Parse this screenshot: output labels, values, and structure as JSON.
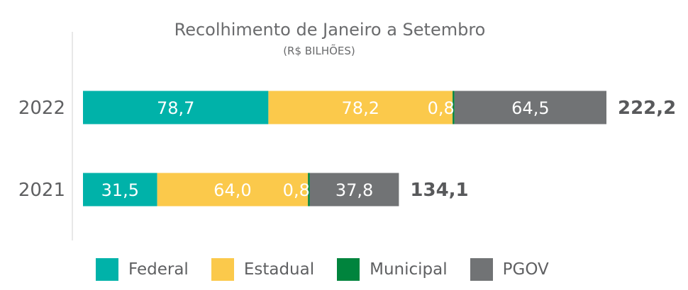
{
  "chart_data": {
    "type": "bar",
    "orientation": "horizontal",
    "stacked": true,
    "title": "Recolhimento de Janeiro a Setembro",
    "subtitle": "(R$ BILHÕES)",
    "categories": [
      "2022",
      "2021"
    ],
    "series": [
      {
        "name": "Federal",
        "color": "#00b2a9",
        "values": [
          78.7,
          31.5
        ],
        "labels": [
          "78,7",
          "31,5"
        ]
      },
      {
        "name": "Estadual",
        "color": "#fbc94b",
        "values": [
          78.2,
          64.0
        ],
        "labels": [
          "78,2",
          "64,0"
        ]
      },
      {
        "name": "Municipal",
        "color": "#00843d",
        "values": [
          0.8,
          0.8
        ],
        "labels": [
          "0,8",
          "0,8"
        ]
      },
      {
        "name": "PGOV",
        "color": "#717375",
        "values": [
          64.5,
          37.8
        ],
        "labels": [
          "64,5",
          "37,8"
        ]
      }
    ],
    "totals": [
      222.2,
      134.1
    ],
    "total_labels": [
      "222,2",
      "134,1"
    ],
    "xlim": [
      0,
      222.2
    ],
    "grid": false,
    "legend_position": "bottom"
  }
}
